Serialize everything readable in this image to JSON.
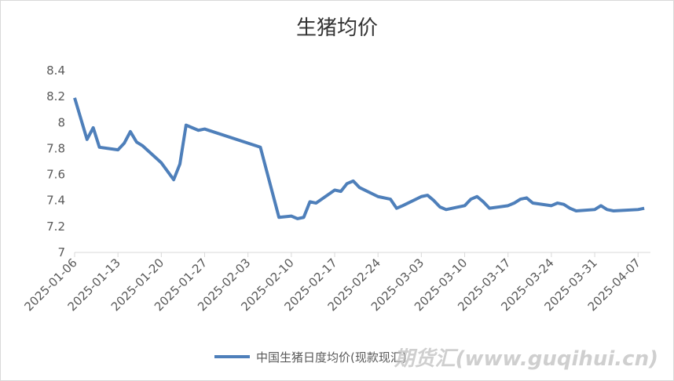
{
  "chart_data": {
    "type": "line",
    "title": "生猪均价",
    "x": [
      "2025-01-06",
      "2025-01-08",
      "2025-01-09",
      "2025-01-10",
      "2025-01-13",
      "2025-01-14",
      "2025-01-15",
      "2025-01-16",
      "2025-01-17",
      "2025-01-20",
      "2025-01-22",
      "2025-01-23",
      "2025-01-24",
      "2025-01-26",
      "2025-01-27",
      "2025-02-05",
      "2025-02-06",
      "2025-02-08",
      "2025-02-10",
      "2025-02-11",
      "2025-02-12",
      "2025-02-13",
      "2025-02-14",
      "2025-02-17",
      "2025-02-18",
      "2025-02-19",
      "2025-02-20",
      "2025-02-21",
      "2025-02-24",
      "2025-02-26",
      "2025-02-27",
      "2025-02-28",
      "2025-03-03",
      "2025-03-04",
      "2025-03-05",
      "2025-03-06",
      "2025-03-07",
      "2025-03-10",
      "2025-03-11",
      "2025-03-12",
      "2025-03-13",
      "2025-03-14",
      "2025-03-17",
      "2025-03-18",
      "2025-03-19",
      "2025-03-20",
      "2025-03-21",
      "2025-03-24",
      "2025-03-25",
      "2025-03-26",
      "2025-03-27",
      "2025-03-28",
      "2025-03-31",
      "2025-04-01",
      "2025-04-02",
      "2025-04-03",
      "2025-04-07",
      "2025-04-08"
    ],
    "series": [
      {
        "name": "中国生猪日度均价(现款现汇)",
        "color": "#4e7fba",
        "values": [
          8.19,
          7.87,
          7.96,
          7.81,
          7.79,
          7.84,
          7.93,
          7.85,
          7.82,
          7.69,
          7.56,
          7.68,
          7.98,
          7.94,
          7.95,
          7.81,
          7.63,
          7.27,
          7.28,
          7.26,
          7.27,
          7.39,
          7.38,
          7.48,
          7.47,
          7.53,
          7.55,
          7.5,
          7.43,
          7.41,
          7.34,
          7.36,
          7.43,
          7.44,
          7.4,
          7.35,
          7.33,
          7.36,
          7.41,
          7.43,
          7.39,
          7.34,
          7.36,
          7.38,
          7.41,
          7.42,
          7.38,
          7.36,
          7.38,
          7.37,
          7.34,
          7.32,
          7.33,
          7.36,
          7.33,
          7.32,
          7.33,
          7.34
        ]
      }
    ],
    "xlim": [
      "2025-01-06",
      "2025-04-09"
    ],
    "xticks": [
      "2025-01-06",
      "2025-01-13",
      "2025-01-20",
      "2025-01-27",
      "2025-02-03",
      "2025-02-10",
      "2025-02-17",
      "2025-02-24",
      "2025-03-03",
      "2025-03-10",
      "2025-03-17",
      "2025-03-24",
      "2025-03-31",
      "2025-04-07"
    ],
    "ylim": [
      7,
      8.4
    ],
    "yticks": [
      7,
      7.2,
      7.4,
      7.6,
      7.8,
      8,
      8.2,
      8.4
    ],
    "grid": false,
    "watermark": "期货汇(www.guqihui.cn)"
  }
}
